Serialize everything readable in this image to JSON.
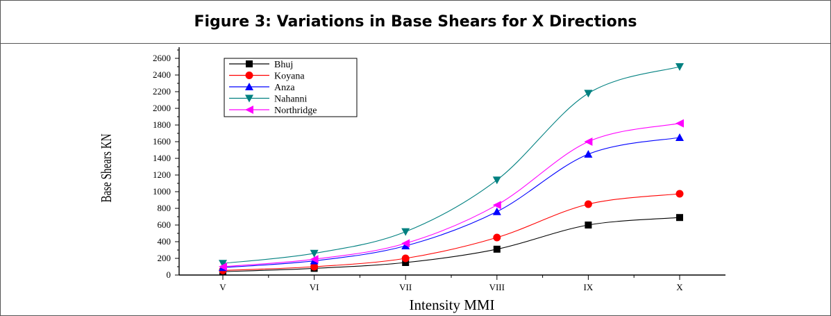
{
  "figure_title": "Figure 3: Variations in Base Shears for X Directions",
  "chart_data": {
    "type": "line",
    "title": "Figure 3: Variations in Base Shears for X Directions",
    "xlabel": "Intensity MMI",
    "ylabel": "Base Shears KN",
    "categories": [
      "V",
      "VI",
      "VII",
      "VIII",
      "IX",
      "X"
    ],
    "ylim": [
      0,
      2700
    ],
    "yticks": [
      0,
      200,
      400,
      600,
      800,
      1000,
      1200,
      1400,
      1600,
      1800,
      2000,
      2200,
      2400,
      2600
    ],
    "grid": false,
    "legend_position": "top-left",
    "series": [
      {
        "name": "Bhuj",
        "color": "#000000",
        "marker": "square",
        "values": [
          40,
          80,
          150,
          310,
          600,
          690
        ]
      },
      {
        "name": "Koyana",
        "color": "#ff0000",
        "marker": "circle",
        "values": [
          55,
          100,
          200,
          450,
          850,
          975
        ]
      },
      {
        "name": "Anza",
        "color": "#0000ff",
        "marker": "triangle-up",
        "values": [
          90,
          170,
          350,
          760,
          1450,
          1650
        ]
      },
      {
        "name": "Nahanni",
        "color": "#008080",
        "marker": "triangle-down",
        "values": [
          140,
          260,
          520,
          1140,
          2180,
          2500
        ]
      },
      {
        "name": "Northridge",
        "color": "#ff00ff",
        "marker": "triangle-left",
        "values": [
          100,
          190,
          380,
          840,
          1600,
          1820
        ]
      }
    ]
  }
}
